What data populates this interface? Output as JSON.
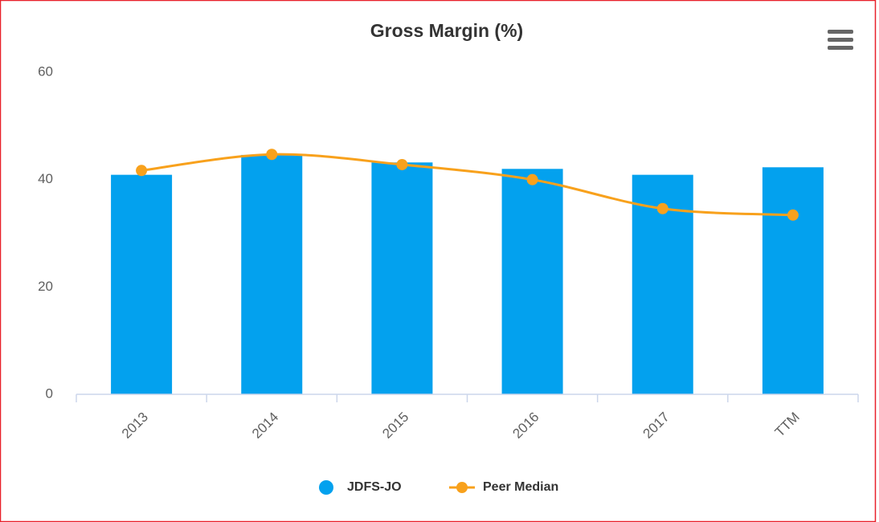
{
  "chart_data": {
    "type": "bar",
    "title": "Gross Margin (%)",
    "categories": [
      "2013",
      "2014",
      "2015",
      "2016",
      "2017",
      "TTM"
    ],
    "series": [
      {
        "name": "JDFS-JO",
        "type": "bar",
        "color": "#03a1ee",
        "values": [
          40.9,
          44.6,
          43.2,
          42.0,
          40.9,
          42.3
        ]
      },
      {
        "name": "Peer Median",
        "type": "line",
        "color": "#f8a11c",
        "values": [
          41.7,
          44.7,
          42.8,
          40.0,
          34.6,
          33.4
        ]
      }
    ],
    "ylim": [
      0,
      60
    ],
    "yticks": [
      0,
      20,
      40,
      60
    ],
    "grid": false
  }
}
